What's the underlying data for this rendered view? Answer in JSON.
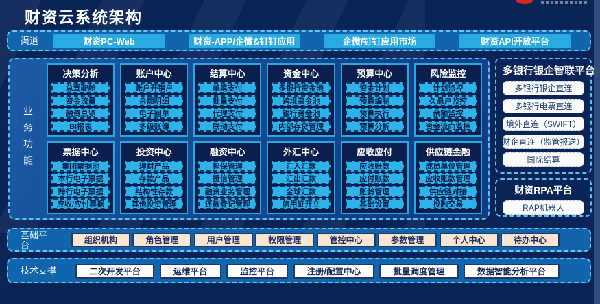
{
  "page": {
    "title": "财资云系统架构"
  },
  "channels": {
    "label": "渠道",
    "items": [
      "财资PC-Web",
      "财资-APP/企微&钉钉应用",
      "企微/钉钉应用市场",
      "财资API开放平台"
    ]
  },
  "business": {
    "label": "业务功能",
    "modules": [
      {
        "title": "决策分析",
        "items": [
          "总驾驶舱",
          "资金流量",
          "融资总览",
          "BI报表"
        ]
      },
      {
        "title": "账户中心",
        "items": [
          "账户开销户",
          "余额明细",
          "电子回单",
          "多级账簿"
        ]
      },
      {
        "title": "结算中心",
        "items": [
          "单笔支付",
          "批量支付",
          "代理支付",
          "联动支付"
        ]
      },
      {
        "title": "资金中心",
        "items": [
          "多银行资金池",
          "跨境资金池",
          "银行资金池",
          "内部存贷管理"
        ]
      },
      {
        "title": "预算中心",
        "items": [
          "资金计划",
          "预算编制",
          "预算执行",
          "预算分析"
        ]
      },
      {
        "title": "风险监控",
        "items": [
          "计划监控",
          "久悬户监控",
          "余额监控",
          "资金流向监控"
        ]
      },
      {
        "title": "票据中心",
        "items": [
          "集团票据池",
          "本行电子票据",
          "跨行电子票据",
          "应收/应付票据"
        ]
      },
      {
        "title": "投资中心",
        "items": [
          "理财产品",
          "存款产品",
          "结构性存款",
          "其他投资管理"
        ]
      },
      {
        "title": "融资中心",
        "items": [
          "担保管理",
          "授信管理",
          "融资业务管理",
          "还款登记管理"
        ]
      },
      {
        "title": "外汇中心",
        "items": [
          "汇入汇款",
          "汇出汇款",
          "全球汇款",
          "信用证开立"
        ]
      },
      {
        "title": "应收应付",
        "items": [
          "应收账款",
          "应付账款",
          "账龄管理",
          "基础设置"
        ]
      },
      {
        "title": "供应链金融",
        "items": [
          "成员单位管理",
          "应收账款管理",
          "供应链对接",
          "投融交易"
        ]
      }
    ]
  },
  "bank_platform": {
    "title": "多银行银企智联平台",
    "items": [
      "多银行银企直连",
      "多银行电票直连",
      "境外直连（SWIFT）",
      "财企直连（监管报送）",
      "国际结算"
    ]
  },
  "rpa_platform": {
    "title": "财资RPA平台",
    "items": [
      "RAP机器人"
    ]
  },
  "base_platform": {
    "label": "基础平台",
    "items": [
      "组织机构",
      "角色管理",
      "用户管理",
      "权限管理",
      "管控中心",
      "参数管理",
      "个人中心",
      "待办中心"
    ]
  },
  "tech_support": {
    "label": "技术支撑",
    "items": [
      "二次开发平台",
      "运维平台",
      "监控平台",
      "注册/配置中心",
      "批量调度管理",
      "数据智能分析平台"
    ]
  },
  "colors": {
    "page_background": "#0a2458",
    "row_panel_background": "#1165ad",
    "dashed_border": "#6ec6f2",
    "channel_button": "#29abe2",
    "module_box_background": "#0a1f4d",
    "module_box_border": "#2aa7e0",
    "module_button": "#2db3ea",
    "module_button_text": "#06204e",
    "white_item_background": "#fbfbfb",
    "peach_button_background": "#fce5d0",
    "logo_red": "#d5281f",
    "title_text": "#ffffff"
  }
}
